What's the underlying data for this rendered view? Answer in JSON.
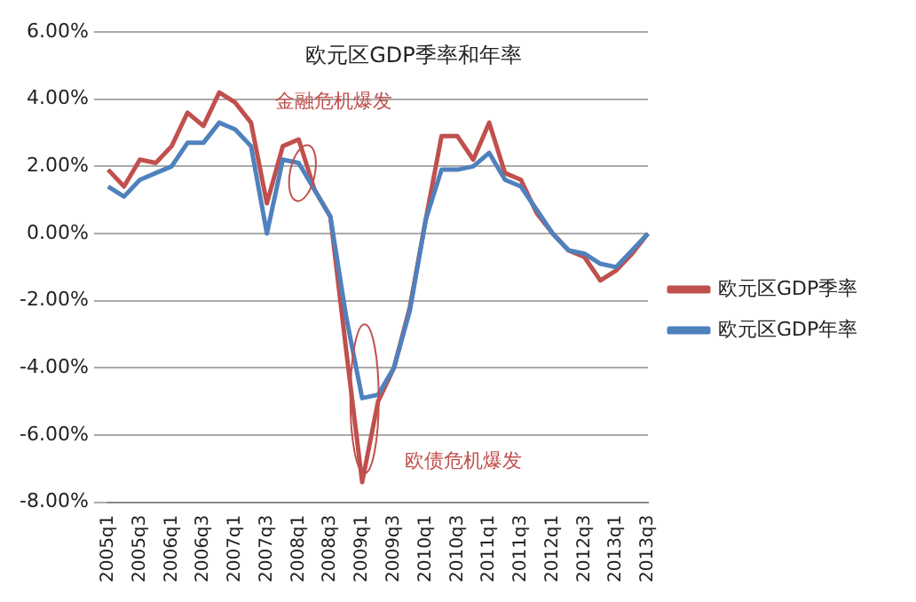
{
  "chart_data": {
    "type": "line",
    "title": "欧元区GDP季率和年率",
    "categories": [
      "2005q1",
      null,
      "2005q3",
      null,
      "2006q1",
      null,
      "2006q3",
      null,
      "2007q1",
      null,
      "2007q3",
      null,
      "2008q1",
      null,
      "2008q3",
      null,
      "2009q1",
      null,
      "2009q3",
      null,
      "2010q1",
      null,
      "2010q3",
      null,
      "2011q1",
      null,
      "2011q3",
      null,
      "2012q1",
      null,
      "2012q3",
      null,
      "2013q1",
      null,
      "2013q3"
    ],
    "series": [
      {
        "name": "欧元区GDP季率",
        "color": "#c0504d",
        "values": [
          1.9,
          1.4,
          2.2,
          2.1,
          2.6,
          3.6,
          3.2,
          4.2,
          3.9,
          3.3,
          0.9,
          2.6,
          2.8,
          1.3,
          0.5,
          -3.5,
          -7.4,
          -5.0,
          -4.0,
          -2.2,
          0.4,
          2.9,
          2.9,
          2.2,
          3.3,
          1.8,
          1.6,
          0.6,
          0.0,
          -0.5,
          -0.7,
          -1.4,
          -1.1,
          -0.6,
          0.0
        ]
      },
      {
        "name": "欧元区GDP年率",
        "color": "#4f81bd",
        "values": [
          1.4,
          1.1,
          1.6,
          1.8,
          2.0,
          2.7,
          2.7,
          3.3,
          3.1,
          2.6,
          0.0,
          2.2,
          2.1,
          1.3,
          0.5,
          -2.5,
          -4.9,
          -4.8,
          -4.0,
          -2.3,
          0.4,
          1.9,
          1.9,
          2.0,
          2.4,
          1.6,
          1.4,
          0.7,
          0.0,
          -0.5,
          -0.6,
          -0.9,
          -1.0,
          -0.5,
          0.0
        ]
      }
    ],
    "ylim": [
      -8,
      6
    ],
    "yticks": [
      {
        "value": -8,
        "label": "-8.00%"
      },
      {
        "value": -6,
        "label": "-6.00%"
      },
      {
        "value": -4,
        "label": "-4.00%"
      },
      {
        "value": -2,
        "label": "-2.00%"
      },
      {
        "value": 0,
        "label": "0.00%"
      },
      {
        "value": 2,
        "label": "2.00%"
      },
      {
        "value": 4,
        "label": "4.00%"
      },
      {
        "value": 6,
        "label": "6.00%"
      }
    ],
    "grid": "y",
    "legend": "right",
    "marker": "none",
    "line_style": "solid",
    "annotations": [
      "金融危机爆发",
      "欧债危机爆发"
    ]
  }
}
